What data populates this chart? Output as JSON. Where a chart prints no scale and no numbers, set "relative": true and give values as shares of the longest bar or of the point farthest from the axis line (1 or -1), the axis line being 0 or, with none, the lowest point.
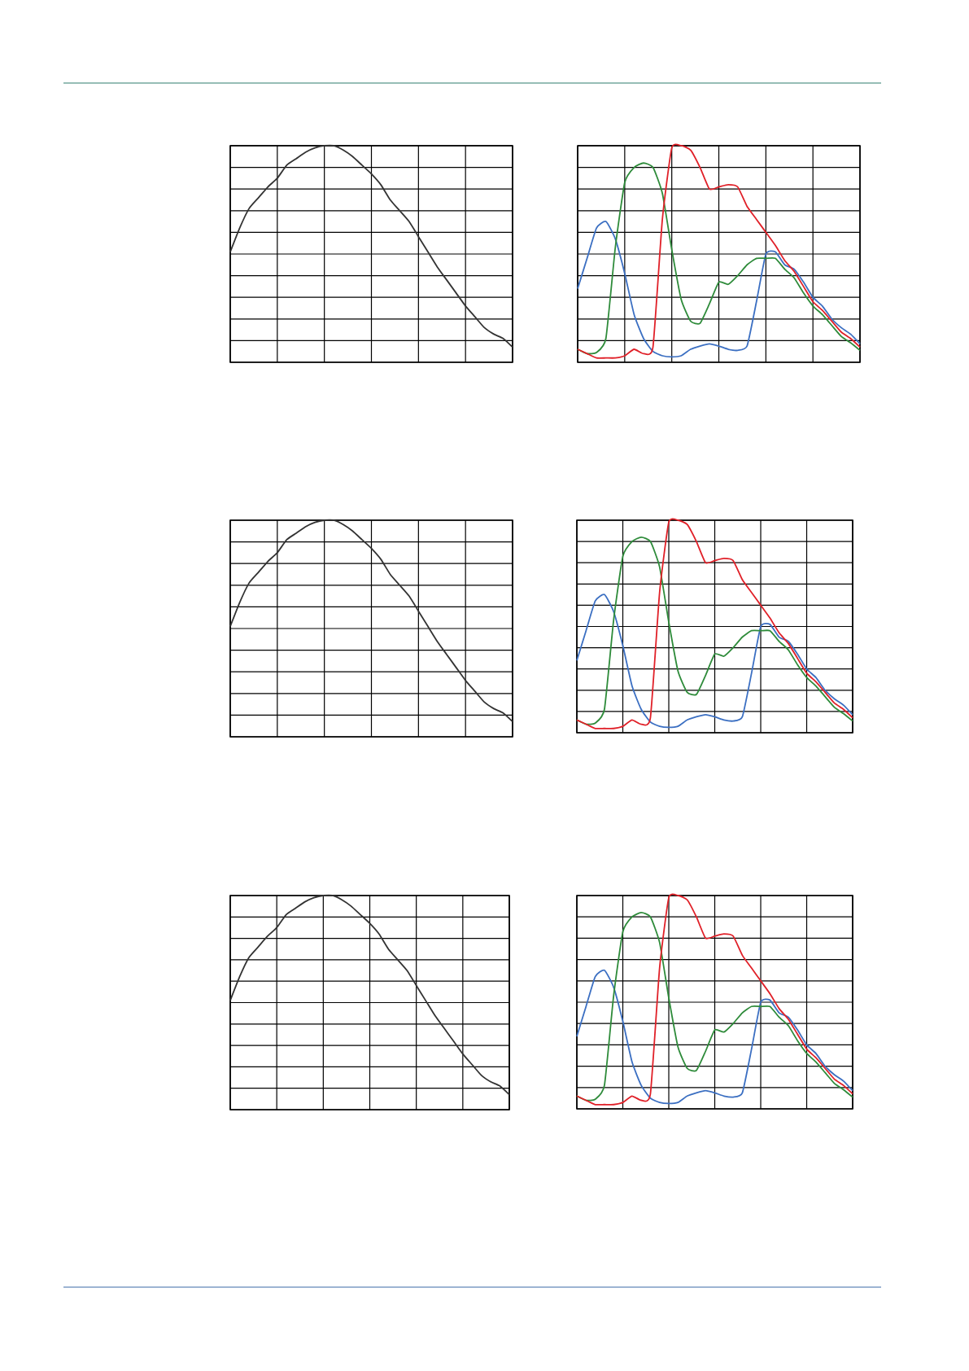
{
  "chart_data": [
    {
      "type": "line",
      "relative": true,
      "grid": true,
      "tick_labels": false,
      "categories": [
        null,
        null,
        null,
        null,
        null,
        null,
        null,
        null,
        null,
        null,
        null,
        null,
        null,
        null,
        null,
        null,
        null,
        null,
        null,
        null,
        null,
        null,
        null,
        null,
        null,
        null,
        null,
        null,
        null,
        null,
        null
      ],
      "series": [
        {
          "color": "#333333",
          "values": [
            0.51,
            0.62,
            0.71,
            0.76,
            0.81,
            0.85,
            0.91,
            0.94,
            0.97,
            0.99,
            1.0,
            1.0,
            0.98,
            0.95,
            0.91,
            0.87,
            0.82,
            0.75,
            0.7,
            0.65,
            0.58,
            0.51,
            0.44,
            0.38,
            0.32,
            0.26,
            0.21,
            0.16,
            0.13,
            0.11,
            0.07
          ]
        }
      ]
    },
    {
      "type": "line",
      "relative": true,
      "grid": true,
      "tick_labels": false,
      "categories": [
        null,
        null,
        null,
        null,
        null,
        null,
        null,
        null,
        null,
        null,
        null,
        null,
        null,
        null,
        null,
        null,
        null,
        null,
        null,
        null,
        null,
        null,
        null,
        null,
        null,
        null,
        null,
        null,
        null,
        null,
        null
      ],
      "series": [
        {
          "color": "#3b6fc2",
          "values": [
            0.34,
            0.48,
            0.62,
            0.65,
            0.57,
            0.41,
            0.22,
            0.11,
            0.05,
            0.03,
            0.025,
            0.03,
            0.06,
            0.075,
            0.085,
            0.075,
            0.06,
            0.055,
            0.075,
            0.28,
            0.5,
            0.51,
            0.45,
            0.43,
            0.37,
            0.3,
            0.26,
            0.2,
            0.16,
            0.13,
            0.085
          ]
        },
        {
          "color": "#2e8b3a",
          "values": [
            0.06,
            0.04,
            0.045,
            0.11,
            0.53,
            0.83,
            0.9,
            0.92,
            0.9,
            0.78,
            0.52,
            0.29,
            0.19,
            0.18,
            0.27,
            0.37,
            0.36,
            0.4,
            0.45,
            0.48,
            0.48,
            0.48,
            0.43,
            0.39,
            0.32,
            0.26,
            0.22,
            0.17,
            0.12,
            0.09,
            0.055
          ]
        },
        {
          "color": "#e02028",
          "values": [
            0.06,
            0.04,
            0.02,
            0.02,
            0.02,
            0.03,
            0.06,
            0.04,
            0.07,
            0.66,
            0.99,
            1.0,
            0.98,
            0.9,
            0.8,
            0.81,
            0.82,
            0.81,
            0.72,
            0.66,
            0.6,
            0.54,
            0.47,
            0.42,
            0.35,
            0.28,
            0.24,
            0.19,
            0.14,
            0.11,
            0.07
          ]
        }
      ]
    },
    {
      "type": "line",
      "relative": true,
      "grid": true,
      "tick_labels": false,
      "categories": [
        null,
        null,
        null,
        null,
        null,
        null,
        null,
        null,
        null,
        null,
        null,
        null,
        null,
        null,
        null,
        null,
        null,
        null,
        null,
        null,
        null,
        null,
        null,
        null,
        null,
        null,
        null,
        null,
        null,
        null,
        null
      ],
      "series": [
        {
          "color": "#333333",
          "values": [
            0.51,
            0.62,
            0.71,
            0.76,
            0.81,
            0.85,
            0.91,
            0.94,
            0.97,
            0.99,
            1.0,
            1.0,
            0.98,
            0.95,
            0.91,
            0.87,
            0.82,
            0.75,
            0.7,
            0.65,
            0.58,
            0.51,
            0.44,
            0.38,
            0.32,
            0.26,
            0.21,
            0.16,
            0.13,
            0.11,
            0.07
          ]
        }
      ]
    },
    {
      "type": "line",
      "relative": true,
      "grid": true,
      "tick_labels": false,
      "categories": [
        null,
        null,
        null,
        null,
        null,
        null,
        null,
        null,
        null,
        null,
        null,
        null,
        null,
        null,
        null,
        null,
        null,
        null,
        null,
        null,
        null,
        null,
        null,
        null,
        null,
        null,
        null,
        null,
        null,
        null,
        null
      ],
      "series": [
        {
          "color": "#3b6fc2",
          "values": [
            0.34,
            0.48,
            0.62,
            0.65,
            0.57,
            0.41,
            0.22,
            0.11,
            0.05,
            0.03,
            0.025,
            0.03,
            0.06,
            0.075,
            0.085,
            0.075,
            0.06,
            0.055,
            0.075,
            0.28,
            0.5,
            0.51,
            0.45,
            0.43,
            0.37,
            0.3,
            0.26,
            0.2,
            0.16,
            0.13,
            0.085
          ]
        },
        {
          "color": "#2e8b3a",
          "values": [
            0.06,
            0.04,
            0.045,
            0.11,
            0.53,
            0.83,
            0.9,
            0.92,
            0.9,
            0.78,
            0.52,
            0.29,
            0.19,
            0.18,
            0.27,
            0.37,
            0.36,
            0.4,
            0.45,
            0.48,
            0.48,
            0.48,
            0.43,
            0.39,
            0.32,
            0.26,
            0.22,
            0.17,
            0.12,
            0.09,
            0.055
          ]
        },
        {
          "color": "#e02028",
          "values": [
            0.06,
            0.04,
            0.02,
            0.02,
            0.02,
            0.03,
            0.06,
            0.04,
            0.07,
            0.66,
            0.99,
            1.0,
            0.98,
            0.9,
            0.8,
            0.81,
            0.82,
            0.81,
            0.72,
            0.66,
            0.6,
            0.54,
            0.47,
            0.42,
            0.35,
            0.28,
            0.24,
            0.19,
            0.14,
            0.11,
            0.07
          ]
        }
      ]
    },
    {
      "type": "line",
      "relative": true,
      "grid": true,
      "tick_labels": false,
      "categories": [
        null,
        null,
        null,
        null,
        null,
        null,
        null,
        null,
        null,
        null,
        null,
        null,
        null,
        null,
        null,
        null,
        null,
        null,
        null,
        null,
        null,
        null,
        null,
        null,
        null,
        null,
        null,
        null,
        null,
        null,
        null
      ],
      "series": [
        {
          "color": "#333333",
          "values": [
            0.51,
            0.62,
            0.71,
            0.76,
            0.81,
            0.85,
            0.91,
            0.94,
            0.97,
            0.99,
            1.0,
            1.0,
            0.98,
            0.95,
            0.91,
            0.87,
            0.82,
            0.75,
            0.7,
            0.65,
            0.58,
            0.51,
            0.44,
            0.38,
            0.32,
            0.26,
            0.21,
            0.16,
            0.13,
            0.11,
            0.07
          ]
        }
      ]
    },
    {
      "type": "line",
      "relative": true,
      "grid": true,
      "tick_labels": false,
      "categories": [
        null,
        null,
        null,
        null,
        null,
        null,
        null,
        null,
        null,
        null,
        null,
        null,
        null,
        null,
        null,
        null,
        null,
        null,
        null,
        null,
        null,
        null,
        null,
        null,
        null,
        null,
        null,
        null,
        null,
        null,
        null
      ],
      "series": [
        {
          "color": "#3b6fc2",
          "values": [
            0.34,
            0.48,
            0.62,
            0.65,
            0.57,
            0.41,
            0.22,
            0.11,
            0.05,
            0.03,
            0.025,
            0.03,
            0.06,
            0.075,
            0.085,
            0.075,
            0.06,
            0.055,
            0.075,
            0.28,
            0.5,
            0.51,
            0.45,
            0.43,
            0.37,
            0.3,
            0.26,
            0.2,
            0.16,
            0.13,
            0.085
          ]
        },
        {
          "color": "#2e8b3a",
          "values": [
            0.06,
            0.04,
            0.045,
            0.11,
            0.53,
            0.83,
            0.9,
            0.92,
            0.9,
            0.78,
            0.52,
            0.29,
            0.19,
            0.18,
            0.27,
            0.37,
            0.36,
            0.4,
            0.45,
            0.48,
            0.48,
            0.48,
            0.43,
            0.39,
            0.32,
            0.26,
            0.22,
            0.17,
            0.12,
            0.09,
            0.055
          ]
        },
        {
          "color": "#e02028",
          "values": [
            0.06,
            0.04,
            0.02,
            0.02,
            0.02,
            0.03,
            0.06,
            0.04,
            0.07,
            0.66,
            0.99,
            1.0,
            0.98,
            0.9,
            0.8,
            0.81,
            0.82,
            0.81,
            0.72,
            0.66,
            0.6,
            0.54,
            0.47,
            0.42,
            0.35,
            0.28,
            0.24,
            0.19,
            0.14,
            0.11,
            0.07
          ]
        }
      ]
    }
  ]
}
